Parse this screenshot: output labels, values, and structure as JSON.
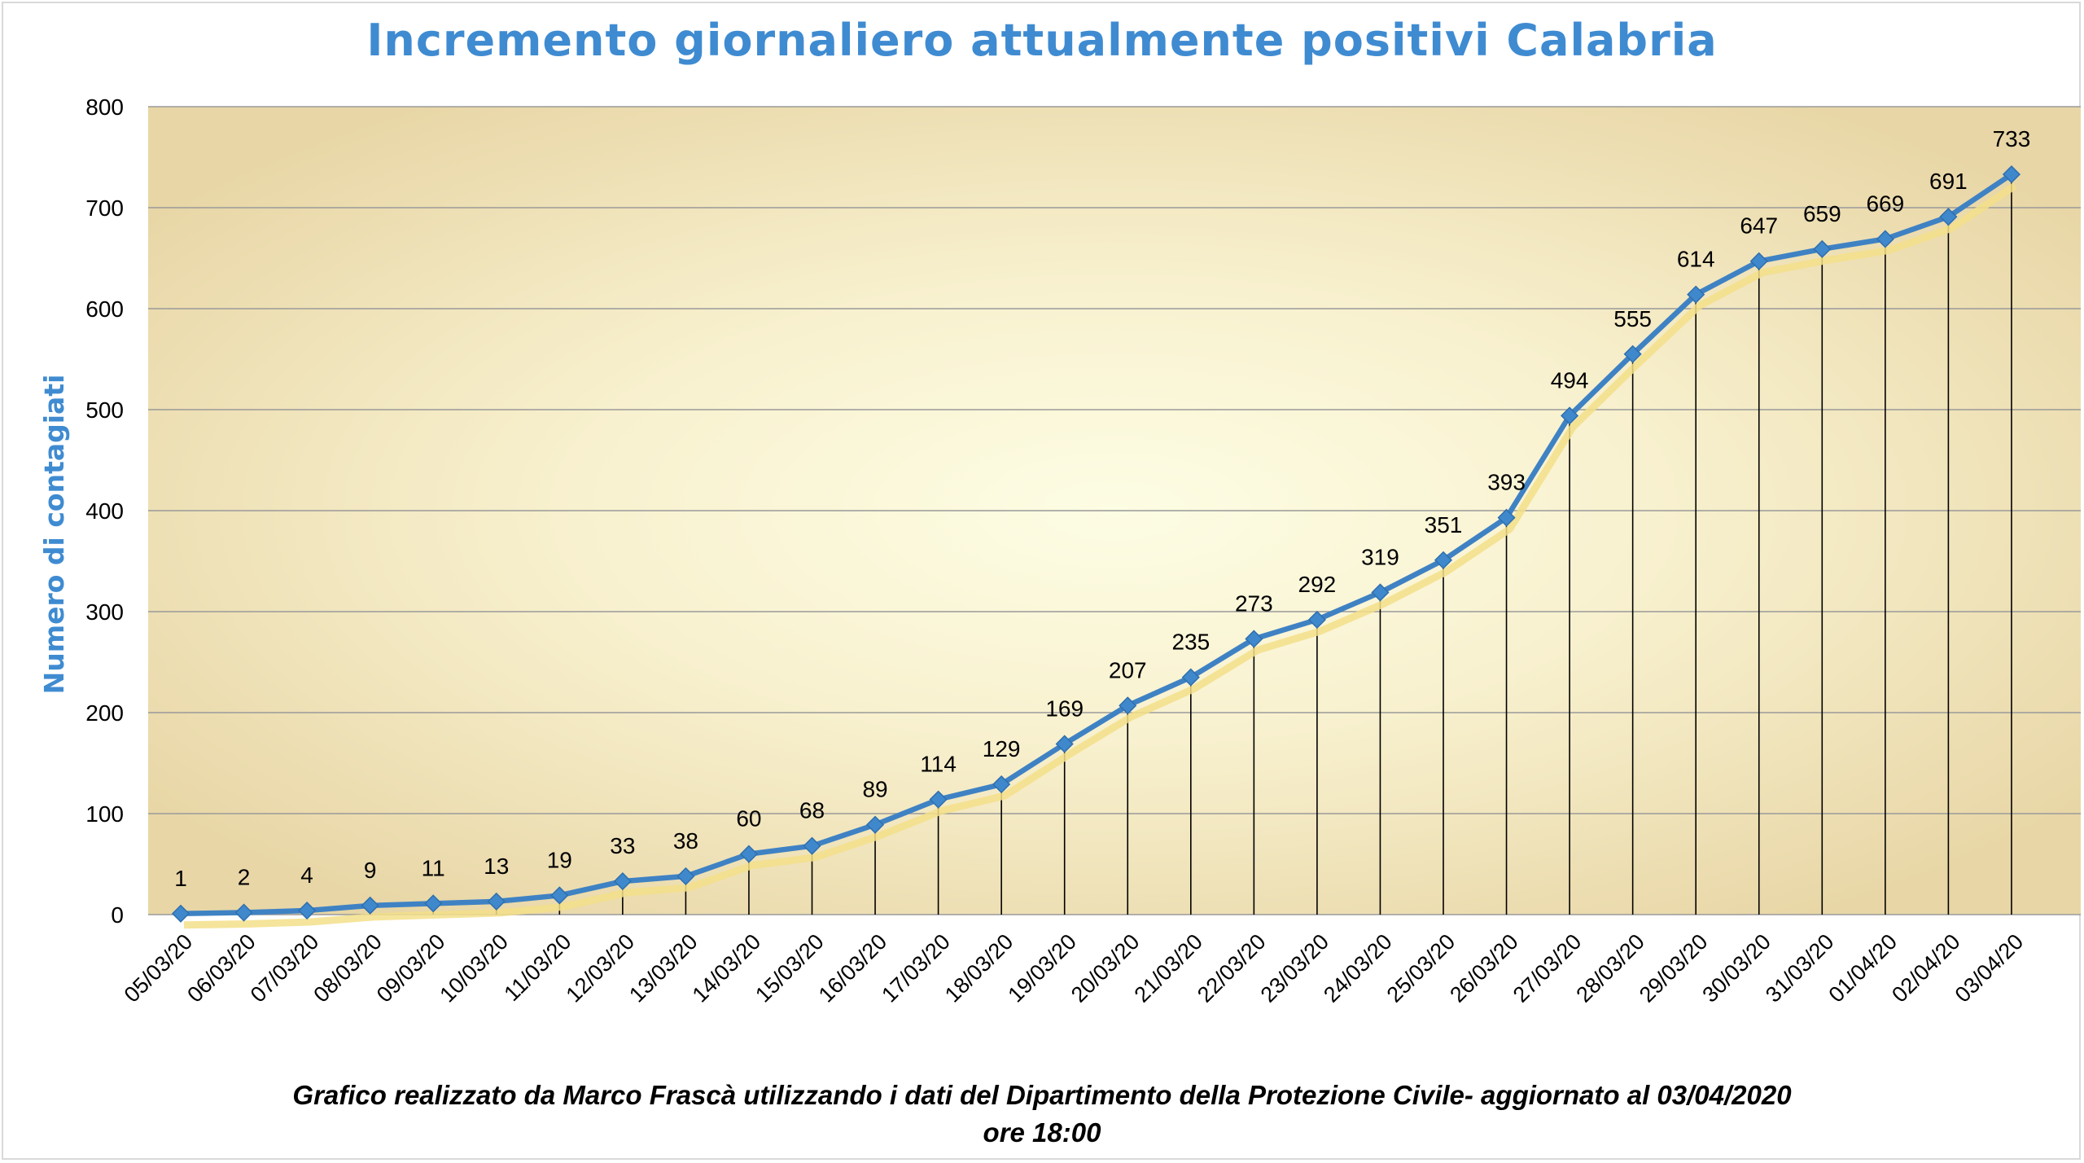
{
  "title": "Incremento giornaliero attualmente positivi Calabria",
  "footer": {
    "line1": "Grafico  realizzato da Marco Frascà  utilizzando i dati del Dipartimento  della Protezione Civile- aggiornato al 03/04/2020",
    "line2": "ore 18:00"
  },
  "colors": {
    "line": "#3f82c4",
    "marker": "#3f88cc",
    "shadow": "#f3df8a",
    "title": "#3f8bd1",
    "gridline": "#9a9a9a",
    "plot_bg_center": "#fdfde4",
    "plot_bg_edge": "#e8d6a6"
  },
  "chart_data": {
    "type": "line",
    "title": "Incremento giornaliero attualmente positivi Calabria",
    "xlabel": "",
    "ylabel": "Numero di contagiati",
    "ylim": [
      0,
      800
    ],
    "yticks": [
      0,
      100,
      200,
      300,
      400,
      500,
      600,
      700,
      800
    ],
    "grid": true,
    "data_labels": true,
    "drop_lines": true,
    "categories": [
      "05/03/20",
      "06/03/20",
      "07/03/20",
      "08/03/20",
      "09/03/20",
      "10/03/20",
      "11/03/20",
      "12/03/20",
      "13/03/20",
      "14/03/20",
      "15/03/20",
      "16/03/20",
      "17/03/20",
      "18/03/20",
      "19/03/20",
      "20/03/20",
      "21/03/20",
      "22/03/20",
      "23/03/20",
      "24/03/20",
      "25/03/20",
      "26/03/20",
      "27/03/20",
      "28/03/20",
      "29/03/20",
      "30/03/20",
      "31/03/20",
      "01/04/20",
      "02/04/20",
      "03/04/20"
    ],
    "series": [
      {
        "values": [
          1,
          2,
          4,
          9,
          11,
          13,
          19,
          33,
          38,
          60,
          68,
          89,
          114,
          129,
          169,
          207,
          235,
          273,
          292,
          319,
          351,
          393,
          494,
          555,
          614,
          647,
          659,
          669,
          691,
          733
        ]
      }
    ]
  }
}
